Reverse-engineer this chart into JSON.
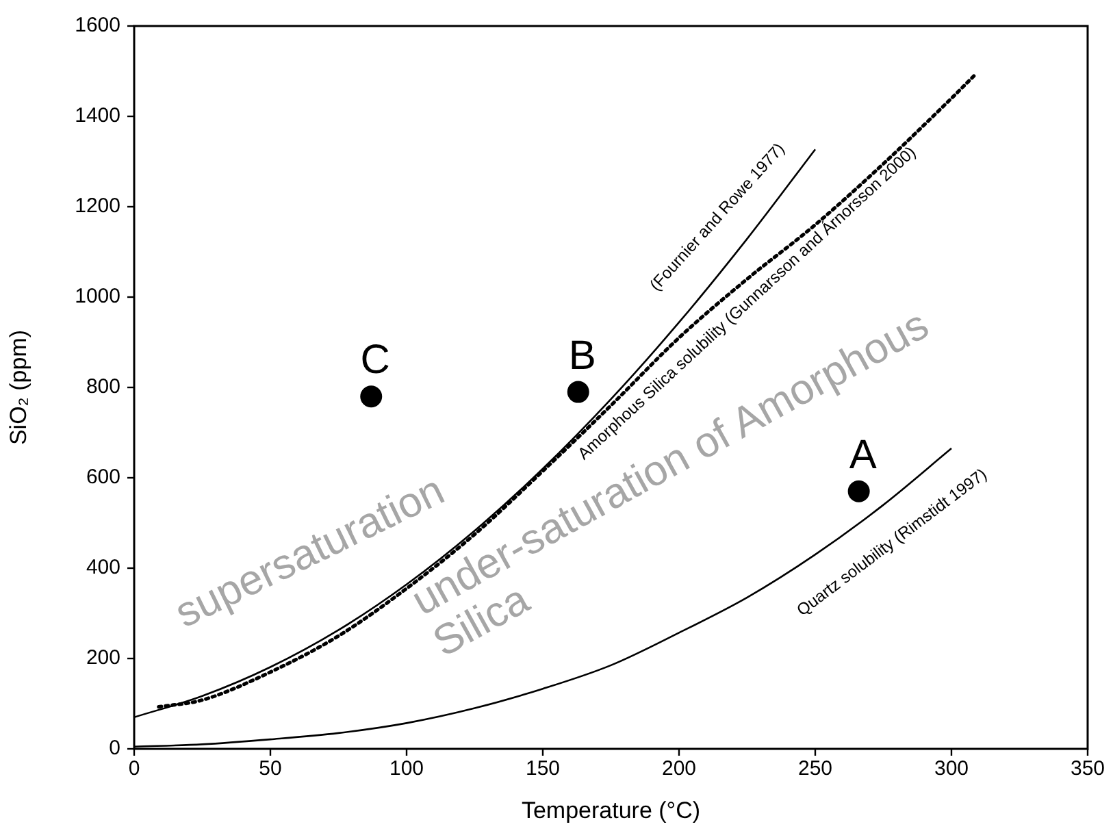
{
  "chart_data": {
    "type": "line",
    "xlabel": "Temperature (°C)",
    "ylabel": "SiO₂ (ppm)",
    "xlim": [
      0,
      350
    ],
    "xticks": [
      0,
      50,
      100,
      150,
      200,
      250,
      300,
      350
    ],
    "ylim": [
      0,
      1600
    ],
    "yticks": [
      0,
      200,
      400,
      600,
      800,
      1000,
      1200,
      1400,
      1600
    ],
    "grid": false,
    "legend": false,
    "series": [
      {
        "name": "(Fournier and Rowe 1977)",
        "type": "line",
        "color": "#000000",
        "line_style": "solid",
        "marker": "none",
        "x": [
          0,
          25,
          50,
          75,
          100,
          125,
          150,
          175,
          200,
          225,
          250
        ],
        "values": [
          70,
          117,
          181,
          263,
          364,
          483,
          620,
          774,
          944,
          1129,
          1327
        ]
      },
      {
        "name": "Amorphous Silica solubility (Gunnarsson and Árnorsson 2000)",
        "type": "line",
        "color": "#000000",
        "line_style": "dotted",
        "marker": "none",
        "x": [
          9,
          25,
          50,
          75,
          100,
          125,
          150,
          175,
          200,
          225,
          250,
          275,
          300,
          309
        ],
        "values": [
          93,
          108,
          170,
          250,
          355,
          475,
          615,
          760,
          910,
          1040,
          1160,
          1295,
          1440,
          1494
        ]
      },
      {
        "name": "Quartz solubility (Rimstidt 1997)",
        "type": "line",
        "color": "#000000",
        "line_style": "solid",
        "marker": "none",
        "x": [
          0,
          25,
          50,
          75,
          100,
          125,
          150,
          175,
          200,
          225,
          250,
          275,
          300
        ],
        "values": [
          5,
          10,
          21,
          35,
          57,
          90,
          133,
          185,
          257,
          335,
          430,
          540,
          665
        ]
      },
      {
        "type": "scatter",
        "color": "#000000",
        "marker": "circle",
        "x": [
          87,
          163,
          266
        ],
        "values": [
          780,
          790,
          570
        ]
      }
    ],
    "annotations": [
      {
        "text": "C",
        "x": 87,
        "y": 780
      },
      {
        "text": "B",
        "x": 163,
        "y": 790
      },
      {
        "text": "A",
        "x": 266,
        "y": 570
      },
      "supersaturation",
      "under-saturation of Amorphous Silica"
    ]
  }
}
